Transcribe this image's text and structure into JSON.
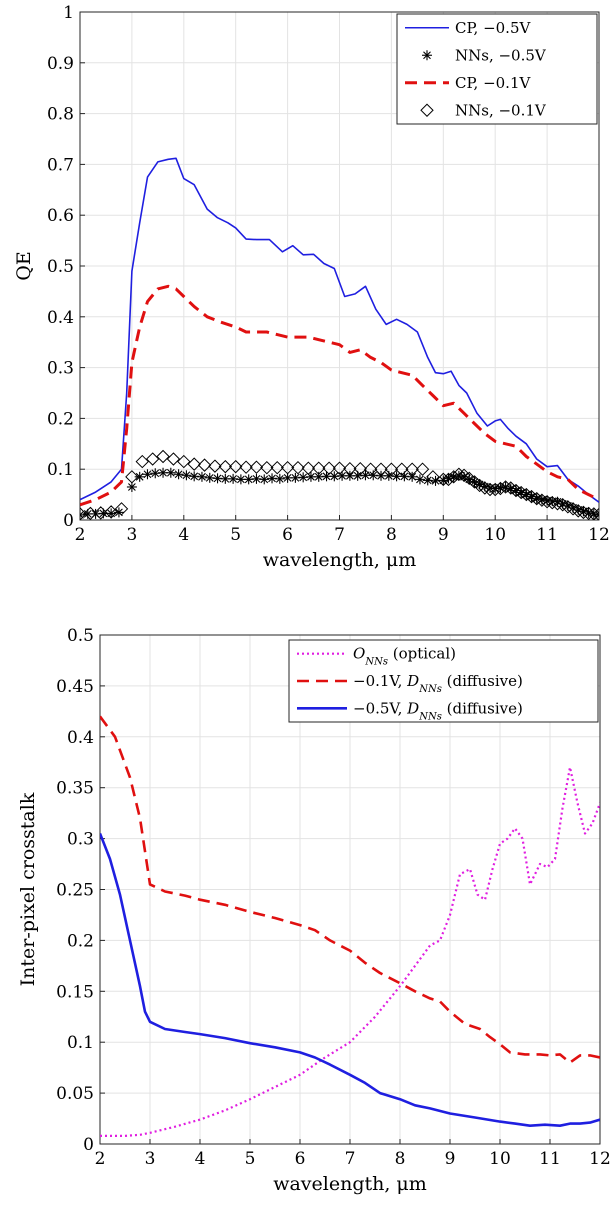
{
  "chart_data": [
    {
      "type": "line",
      "xlabel": "wavelength, μm",
      "ylabel": "QE",
      "xlim": [
        2,
        12
      ],
      "ylim": [
        0,
        1
      ],
      "xticks": [
        "2",
        "3",
        "4",
        "5",
        "6",
        "7",
        "8",
        "9",
        "10",
        "11",
        "12"
      ],
      "yticks": [
        "0",
        "0.1",
        "0.2",
        "0.3",
        "0.4",
        "0.5",
        "0.6",
        "0.7",
        "0.8",
        "0.9",
        "1"
      ],
      "grid": true,
      "legend_position": "top-right",
      "series": [
        {
          "name": "CP, −0.5V",
          "style": "solid",
          "marker": "none",
          "color": "#1f1fe0",
          "x": [
            2.0,
            2.3,
            2.6,
            2.8,
            2.9,
            3.0,
            3.15,
            3.3,
            3.5,
            3.7,
            3.85,
            4.0,
            4.2,
            4.45,
            4.65,
            4.85,
            5.0,
            5.2,
            5.4,
            5.65,
            5.9,
            6.1,
            6.3,
            6.5,
            6.7,
            6.9,
            7.1,
            7.3,
            7.5,
            7.7,
            7.9,
            8.1,
            8.3,
            8.5,
            8.7,
            8.85,
            9.0,
            9.15,
            9.3,
            9.45,
            9.65,
            9.85,
            10.0,
            10.1,
            10.25,
            10.4,
            10.6,
            10.8,
            11.0,
            11.2,
            11.4,
            11.6,
            11.8,
            12.0
          ],
          "values": [
            0.04,
            0.055,
            0.075,
            0.1,
            0.25,
            0.49,
            0.585,
            0.675,
            0.705,
            0.71,
            0.712,
            0.672,
            0.66,
            0.612,
            0.595,
            0.585,
            0.575,
            0.553,
            0.552,
            0.552,
            0.528,
            0.54,
            0.522,
            0.523,
            0.505,
            0.495,
            0.44,
            0.445,
            0.46,
            0.415,
            0.385,
            0.395,
            0.385,
            0.37,
            0.32,
            0.29,
            0.288,
            0.293,
            0.265,
            0.25,
            0.21,
            0.185,
            0.195,
            0.198,
            0.18,
            0.165,
            0.15,
            0.12,
            0.105,
            0.107,
            0.08,
            0.067,
            0.05,
            0.035
          ]
        },
        {
          "name": "NNs, −0.5V",
          "style": "none",
          "marker": "asterisk",
          "color": "#000000",
          "x": [
            2.0,
            2.15,
            2.3,
            2.45,
            2.6,
            2.75,
            3.0,
            3.15,
            3.3,
            3.45,
            3.6,
            3.75,
            3.9,
            4.05,
            4.2,
            4.35,
            4.5,
            4.65,
            4.8,
            4.95,
            5.1,
            5.25,
            5.4,
            5.55,
            5.7,
            5.85,
            6.0,
            6.15,
            6.3,
            6.45,
            6.6,
            6.75,
            6.9,
            7.05,
            7.2,
            7.35,
            7.5,
            7.65,
            7.8,
            7.95,
            8.1,
            8.25,
            8.4,
            8.55,
            8.7,
            8.85,
            9.0,
            9.1,
            9.2,
            9.3,
            9.4,
            9.5,
            9.6,
            9.7,
            9.8,
            9.9,
            10.0,
            10.1,
            10.2,
            10.3,
            10.4,
            10.5,
            10.6,
            10.7,
            10.8,
            10.9,
            11.0,
            11.1,
            11.2,
            11.3,
            11.4,
            11.5,
            11.6,
            11.7,
            11.8,
            11.9,
            12.0
          ],
          "values": [
            0.01,
            0.012,
            0.012,
            0.013,
            0.013,
            0.015,
            0.065,
            0.085,
            0.09,
            0.092,
            0.093,
            0.093,
            0.09,
            0.088,
            0.086,
            0.085,
            0.083,
            0.082,
            0.081,
            0.081,
            0.08,
            0.08,
            0.081,
            0.08,
            0.082,
            0.081,
            0.083,
            0.083,
            0.084,
            0.085,
            0.085,
            0.086,
            0.086,
            0.087,
            0.087,
            0.087,
            0.088,
            0.088,
            0.087,
            0.087,
            0.086,
            0.086,
            0.085,
            0.08,
            0.078,
            0.077,
            0.078,
            0.082,
            0.085,
            0.087,
            0.085,
            0.08,
            0.075,
            0.07,
            0.066,
            0.063,
            0.062,
            0.063,
            0.065,
            0.062,
            0.058,
            0.054,
            0.05,
            0.046,
            0.042,
            0.04,
            0.038,
            0.037,
            0.036,
            0.032,
            0.028,
            0.024,
            0.02,
            0.017,
            0.014,
            0.012,
            0.01
          ]
        },
        {
          "name": "CP, −0.1V",
          "style": "dashed",
          "marker": "none",
          "color": "#e01010",
          "x": [
            2.0,
            2.3,
            2.6,
            2.8,
            2.9,
            3.0,
            3.15,
            3.3,
            3.5,
            3.7,
            3.85,
            4.0,
            4.2,
            4.45,
            4.7,
            5.0,
            5.2,
            5.4,
            5.6,
            5.8,
            6.0,
            6.2,
            6.4,
            6.6,
            6.8,
            7.0,
            7.2,
            7.4,
            7.6,
            7.8,
            8.0,
            8.2,
            8.4,
            8.6,
            8.8,
            9.0,
            9.2,
            9.4,
            9.6,
            9.8,
            10.0,
            10.2,
            10.4,
            10.6,
            10.8,
            11.0,
            11.2,
            11.4,
            11.6,
            11.8,
            12.0
          ],
          "values": [
            0.03,
            0.04,
            0.055,
            0.075,
            0.18,
            0.31,
            0.38,
            0.43,
            0.455,
            0.46,
            0.455,
            0.44,
            0.42,
            0.4,
            0.39,
            0.38,
            0.37,
            0.37,
            0.37,
            0.365,
            0.36,
            0.36,
            0.36,
            0.355,
            0.35,
            0.345,
            0.33,
            0.335,
            0.32,
            0.31,
            0.295,
            0.29,
            0.285,
            0.265,
            0.245,
            0.225,
            0.23,
            0.21,
            0.19,
            0.17,
            0.155,
            0.15,
            0.145,
            0.125,
            0.11,
            0.095,
            0.085,
            0.08,
            0.06,
            0.05,
            0.04
          ]
        },
        {
          "name": "NNs, −0.1V",
          "style": "none",
          "marker": "diamond",
          "color": "#000000",
          "x": [
            2.0,
            2.2,
            2.4,
            2.6,
            2.8,
            3.0,
            3.2,
            3.4,
            3.6,
            3.8,
            4.0,
            4.2,
            4.4,
            4.6,
            4.8,
            5.0,
            5.2,
            5.4,
            5.6,
            5.8,
            6.0,
            6.2,
            6.4,
            6.6,
            6.8,
            7.0,
            7.2,
            7.4,
            7.6,
            7.8,
            8.0,
            8.2,
            8.4,
            8.6,
            8.8,
            9.0,
            9.1,
            9.2,
            9.3,
            9.4,
            9.5,
            9.6,
            9.7,
            9.8,
            9.9,
            10.0,
            10.1,
            10.2,
            10.3,
            10.4,
            10.5,
            10.6,
            10.7,
            10.8,
            10.9,
            11.0,
            11.1,
            11.2,
            11.3,
            11.4,
            11.5,
            11.6,
            11.7,
            11.8,
            11.9,
            12.0
          ],
          "values": [
            0.012,
            0.013,
            0.014,
            0.016,
            0.022,
            0.085,
            0.115,
            0.12,
            0.125,
            0.12,
            0.115,
            0.11,
            0.108,
            0.106,
            0.105,
            0.105,
            0.104,
            0.104,
            0.103,
            0.103,
            0.103,
            0.103,
            0.102,
            0.102,
            0.102,
            0.102,
            0.101,
            0.101,
            0.1,
            0.1,
            0.1,
            0.1,
            0.1,
            0.1,
            0.085,
            0.08,
            0.08,
            0.085,
            0.09,
            0.088,
            0.082,
            0.075,
            0.068,
            0.063,
            0.06,
            0.06,
            0.062,
            0.065,
            0.063,
            0.058,
            0.054,
            0.05,
            0.046,
            0.042,
            0.039,
            0.036,
            0.034,
            0.032,
            0.03,
            0.026,
            0.022,
            0.018,
            0.015,
            0.013,
            0.012,
            0.011
          ]
        }
      ]
    },
    {
      "type": "line",
      "xlabel": "wavelength, μm",
      "ylabel": "Inter-pixel crosstalk",
      "xlim": [
        2,
        12
      ],
      "ylim": [
        0,
        0.5
      ],
      "xticks": [
        "2",
        "3",
        "4",
        "5",
        "6",
        "7",
        "8",
        "9",
        "10",
        "11",
        "12"
      ],
      "yticks": [
        "0",
        "0.05",
        "0.1",
        "0.15",
        "0.2",
        "0.25",
        "0.3",
        "0.35",
        "0.4",
        "0.45",
        "0.5"
      ],
      "grid": true,
      "legend_position": "top-right",
      "series": [
        {
          "name_symbol": "O",
          "name_subscript": "NNs",
          "name_rest": "(optical)",
          "style": "dotted",
          "color": "#e01ee0",
          "x": [
            2.0,
            2.5,
            2.8,
            3.0,
            3.5,
            4.0,
            4.5,
            5.0,
            5.5,
            6.0,
            6.5,
            7.0,
            7.5,
            8.0,
            8.3,
            8.6,
            8.8,
            9.0,
            9.2,
            9.4,
            9.55,
            9.7,
            9.85,
            10.0,
            10.15,
            10.3,
            10.45,
            10.6,
            10.8,
            10.95,
            11.1,
            11.25,
            11.4,
            11.55,
            11.7,
            11.85,
            12.0
          ],
          "values": [
            0.008,
            0.008,
            0.009,
            0.011,
            0.017,
            0.024,
            0.033,
            0.044,
            0.056,
            0.068,
            0.085,
            0.1,
            0.125,
            0.155,
            0.175,
            0.195,
            0.2,
            0.225,
            0.265,
            0.27,
            0.245,
            0.24,
            0.27,
            0.295,
            0.3,
            0.31,
            0.3,
            0.255,
            0.275,
            0.272,
            0.28,
            0.33,
            0.37,
            0.335,
            0.305,
            0.315,
            0.335
          ]
        },
        {
          "name_symbol": "D",
          "name_prefix": "−0.1V,",
          "name_subscript": "NNs",
          "name_rest": "(diffusive)",
          "style": "dashed",
          "color": "#e01010",
          "x": [
            2.0,
            2.3,
            2.6,
            2.8,
            3.0,
            3.3,
            3.7,
            4.0,
            4.5,
            5.0,
            5.5,
            6.0,
            6.3,
            6.6,
            7.0,
            7.3,
            7.6,
            8.0,
            8.3,
            8.6,
            8.8,
            9.0,
            9.3,
            9.6,
            9.8,
            10.0,
            10.2,
            10.5,
            10.8,
            11.0,
            11.2,
            11.4,
            11.6,
            11.8,
            12.0
          ],
          "values": [
            0.42,
            0.4,
            0.36,
            0.32,
            0.255,
            0.248,
            0.244,
            0.24,
            0.235,
            0.228,
            0.222,
            0.215,
            0.21,
            0.2,
            0.19,
            0.178,
            0.168,
            0.158,
            0.15,
            0.143,
            0.14,
            0.13,
            0.118,
            0.113,
            0.105,
            0.098,
            0.09,
            0.088,
            0.088,
            0.087,
            0.088,
            0.08,
            0.087,
            0.087,
            0.085
          ]
        },
        {
          "name_symbol": "D",
          "name_prefix": "−0.5V,",
          "name_subscript": "NNs",
          "name_rest": "(diffusive)",
          "style": "solid",
          "color": "#1f1fe0",
          "x": [
            2.0,
            2.2,
            2.4,
            2.6,
            2.8,
            2.9,
            3.0,
            3.3,
            3.7,
            4.0,
            4.5,
            5.0,
            5.5,
            6.0,
            6.3,
            6.6,
            7.0,
            7.3,
            7.6,
            8.0,
            8.3,
            8.6,
            9.0,
            9.5,
            10.0,
            10.3,
            10.6,
            10.9,
            11.2,
            11.4,
            11.6,
            11.8,
            12.0
          ],
          "values": [
            0.305,
            0.28,
            0.245,
            0.2,
            0.155,
            0.13,
            0.12,
            0.113,
            0.11,
            0.108,
            0.104,
            0.099,
            0.095,
            0.09,
            0.085,
            0.078,
            0.068,
            0.06,
            0.05,
            0.044,
            0.038,
            0.035,
            0.03,
            0.026,
            0.022,
            0.02,
            0.018,
            0.019,
            0.018,
            0.02,
            0.02,
            0.021,
            0.024
          ]
        }
      ]
    }
  ]
}
